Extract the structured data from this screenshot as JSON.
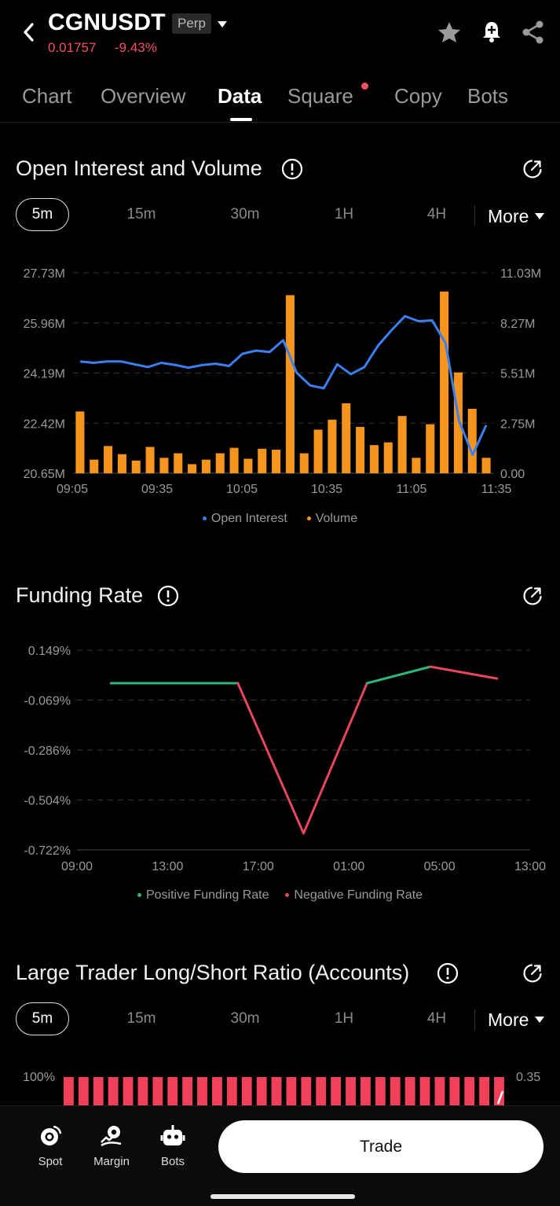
{
  "header": {
    "symbol": "CGNUSDT",
    "type_badge": "Perp",
    "price": "0.01757",
    "change": "-9.43%"
  },
  "tabs": [
    {
      "label": "Chart"
    },
    {
      "label": "Overview"
    },
    {
      "label": "Data"
    },
    {
      "label": "Square"
    },
    {
      "label": "Copy"
    },
    {
      "label": "Bots"
    }
  ],
  "active_tab": "Data",
  "intervals": [
    "5m",
    "15m",
    "30m",
    "1H",
    "4H"
  ],
  "more_label": "More",
  "sections": {
    "oi": {
      "title": "Open Interest and Volume"
    },
    "funding": {
      "title": "Funding Rate"
    },
    "ratio": {
      "title": "Large Trader Long/Short Ratio (Accounts)"
    }
  },
  "chart_data": [
    {
      "type": "bar",
      "title": "Open Interest and Volume",
      "x_ticks": [
        "09:05",
        "09:35",
        "10:05",
        "10:35",
        "11:05",
        "11:35"
      ],
      "y_left_ticks": [
        "27.73M",
        "25.96M",
        "24.19M",
        "22.42M",
        "20.65M"
      ],
      "y_right_ticks": [
        "11.03M",
        "8.27M",
        "5.51M",
        "2.75M",
        "0.00"
      ],
      "y_left_range": [
        20.65,
        27.73
      ],
      "y_right_range": [
        0,
        11.03
      ],
      "series": [
        {
          "name": "Open Interest",
          "type": "line",
          "color": "#3b7ff0",
          "axis": "left",
          "values": [
            24.6,
            24.55,
            24.6,
            24.6,
            24.5,
            24.4,
            24.55,
            24.48,
            24.38,
            24.47,
            24.52,
            24.44,
            24.87,
            24.98,
            24.93,
            25.35,
            24.2,
            23.75,
            23.65,
            24.5,
            24.15,
            24.4,
            25.15,
            25.7,
            26.2,
            26.02,
            26.05,
            25.25,
            22.5,
            21.3,
            22.35
          ]
        },
        {
          "name": "Volume",
          "type": "bar",
          "color": "#f5951e",
          "axis": "right",
          "values": [
            3.4,
            0.75,
            1.5,
            1.05,
            0.7,
            1.45,
            0.85,
            1.1,
            0.5,
            0.75,
            1.1,
            1.4,
            0.8,
            1.35,
            1.3,
            9.8,
            1.1,
            2.4,
            2.95,
            3.85,
            2.55,
            1.55,
            1.7,
            3.15,
            0.85,
            2.7,
            10.0,
            5.55,
            3.55,
            0.85
          ]
        }
      ],
      "legend": [
        "Open Interest",
        "Volume"
      ]
    },
    {
      "type": "line",
      "title": "Funding Rate",
      "x_ticks": [
        "09:00",
        "13:00",
        "17:00",
        "01:00",
        "05:00",
        "13:00"
      ],
      "y_ticks": [
        "0.149%",
        "-0.069%",
        "-0.286%",
        "-0.504%",
        "-0.722%"
      ],
      "y_range": [
        -0.722,
        0.149
      ],
      "points": [
        0.005,
        0.005,
        0.005,
        -0.65,
        0.005,
        0.077,
        0.025
      ],
      "colors": {
        "positive": "#2fb57b",
        "negative": "#e8455f"
      },
      "legend": [
        "Positive Funding Rate",
        "Negative Funding Rate"
      ]
    },
    {
      "type": "bar",
      "title": "Large Trader Long/Short Ratio (Accounts)",
      "y_left_ticks": [
        "100%"
      ],
      "y_right_ticks": [
        "0.35"
      ],
      "bar_count": 30,
      "bar_color": "#f0405a"
    }
  ],
  "bottom_nav": {
    "items": [
      {
        "label": "Spot"
      },
      {
        "label": "Margin"
      },
      {
        "label": "Bots"
      }
    ],
    "trade_label": "Trade"
  }
}
